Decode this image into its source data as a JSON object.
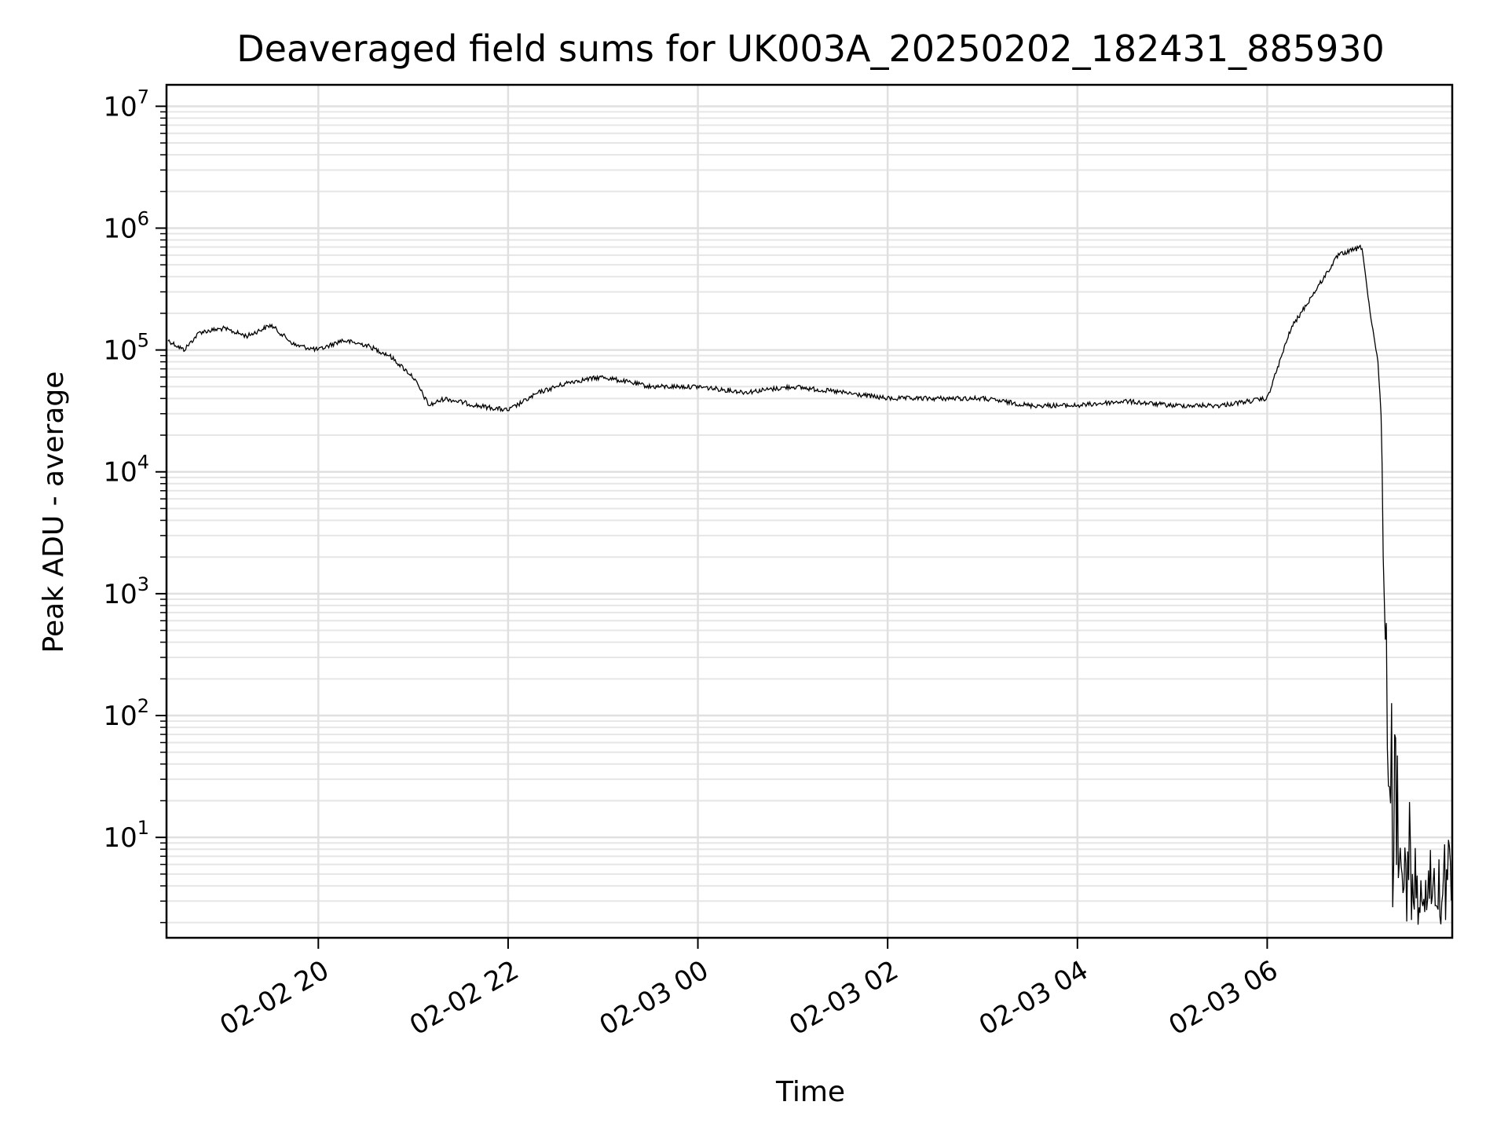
{
  "chart_data": {
    "type": "line",
    "title": "Deaveraged field sums for UK003A_20250202_182431_885930",
    "xlabel": "Time",
    "ylabel": "Peak ADU - average",
    "yscale": "log",
    "ylim": [
      1.5,
      15000000
    ],
    "xlim": [
      "2025-02-02 18:24",
      "2025-02-03 07:57"
    ],
    "grid": true,
    "x_ticks": [
      {
        "value": "2025-02-02 20:00",
        "label": "02-02 20"
      },
      {
        "value": "2025-02-02 22:00",
        "label": "02-02 22"
      },
      {
        "value": "2025-02-03 00:00",
        "label": "02-03 00"
      },
      {
        "value": "2025-02-03 02:00",
        "label": "02-03 02"
      },
      {
        "value": "2025-02-03 04:00",
        "label": "02-03 04"
      },
      {
        "value": "2025-02-03 06:00",
        "label": "02-03 06"
      }
    ],
    "y_ticks": [
      {
        "value": 10,
        "base": "10",
        "exp": "1"
      },
      {
        "value": 100,
        "base": "10",
        "exp": "2"
      },
      {
        "value": 1000,
        "base": "10",
        "exp": "3"
      },
      {
        "value": 10000,
        "base": "10",
        "exp": "4"
      },
      {
        "value": 100000,
        "base": "10",
        "exp": "5"
      },
      {
        "value": 1000000,
        "base": "10",
        "exp": "6"
      },
      {
        "value": 10000000,
        "base": "10",
        "exp": "7"
      }
    ],
    "series": [
      {
        "color": "#000000",
        "x": [
          "2025-02-02 18:25",
          "2025-02-02 18:35",
          "2025-02-02 18:45",
          "2025-02-02 19:00",
          "2025-02-02 19:15",
          "2025-02-02 19:30",
          "2025-02-02 19:45",
          "2025-02-02 20:00",
          "2025-02-02 20:15",
          "2025-02-02 20:30",
          "2025-02-02 20:45",
          "2025-02-02 21:00",
          "2025-02-02 21:10",
          "2025-02-02 21:20",
          "2025-02-02 21:40",
          "2025-02-02 22:00",
          "2025-02-02 22:20",
          "2025-02-02 22:40",
          "2025-02-02 23:00",
          "2025-02-02 23:30",
          "2025-02-03 00:00",
          "2025-02-03 00:30",
          "2025-02-03 01:00",
          "2025-02-03 01:30",
          "2025-02-03 02:00",
          "2025-02-03 02:30",
          "2025-02-03 03:00",
          "2025-02-03 03:30",
          "2025-02-03 04:00",
          "2025-02-03 04:30",
          "2025-02-03 05:00",
          "2025-02-03 05:30",
          "2025-02-03 06:00",
          "2025-02-03 06:15",
          "2025-02-03 06:30",
          "2025-02-03 06:45",
          "2025-02-03 07:00",
          "2025-02-03 07:05",
          "2025-02-03 07:10",
          "2025-02-03 07:12",
          "2025-02-03 07:14",
          "2025-02-03 07:16",
          "2025-02-03 07:18",
          "2025-02-03 07:20",
          "2025-02-03 07:30",
          "2025-02-03 07:45",
          "2025-02-03 07:57"
        ],
        "y": [
          120000,
          100000,
          140000,
          150000,
          130000,
          160000,
          110000,
          100000,
          120000,
          110000,
          90000,
          60000,
          35000,
          40000,
          35000,
          32000,
          45000,
          55000,
          60000,
          50000,
          50000,
          45000,
          50000,
          45000,
          40000,
          40000,
          40000,
          35000,
          35000,
          38000,
          35000,
          35000,
          40000,
          150000,
          300000,
          600000,
          700000,
          200000,
          80000,
          30000,
          1500,
          100,
          10,
          4,
          4,
          4,
          4
        ]
      }
    ]
  }
}
